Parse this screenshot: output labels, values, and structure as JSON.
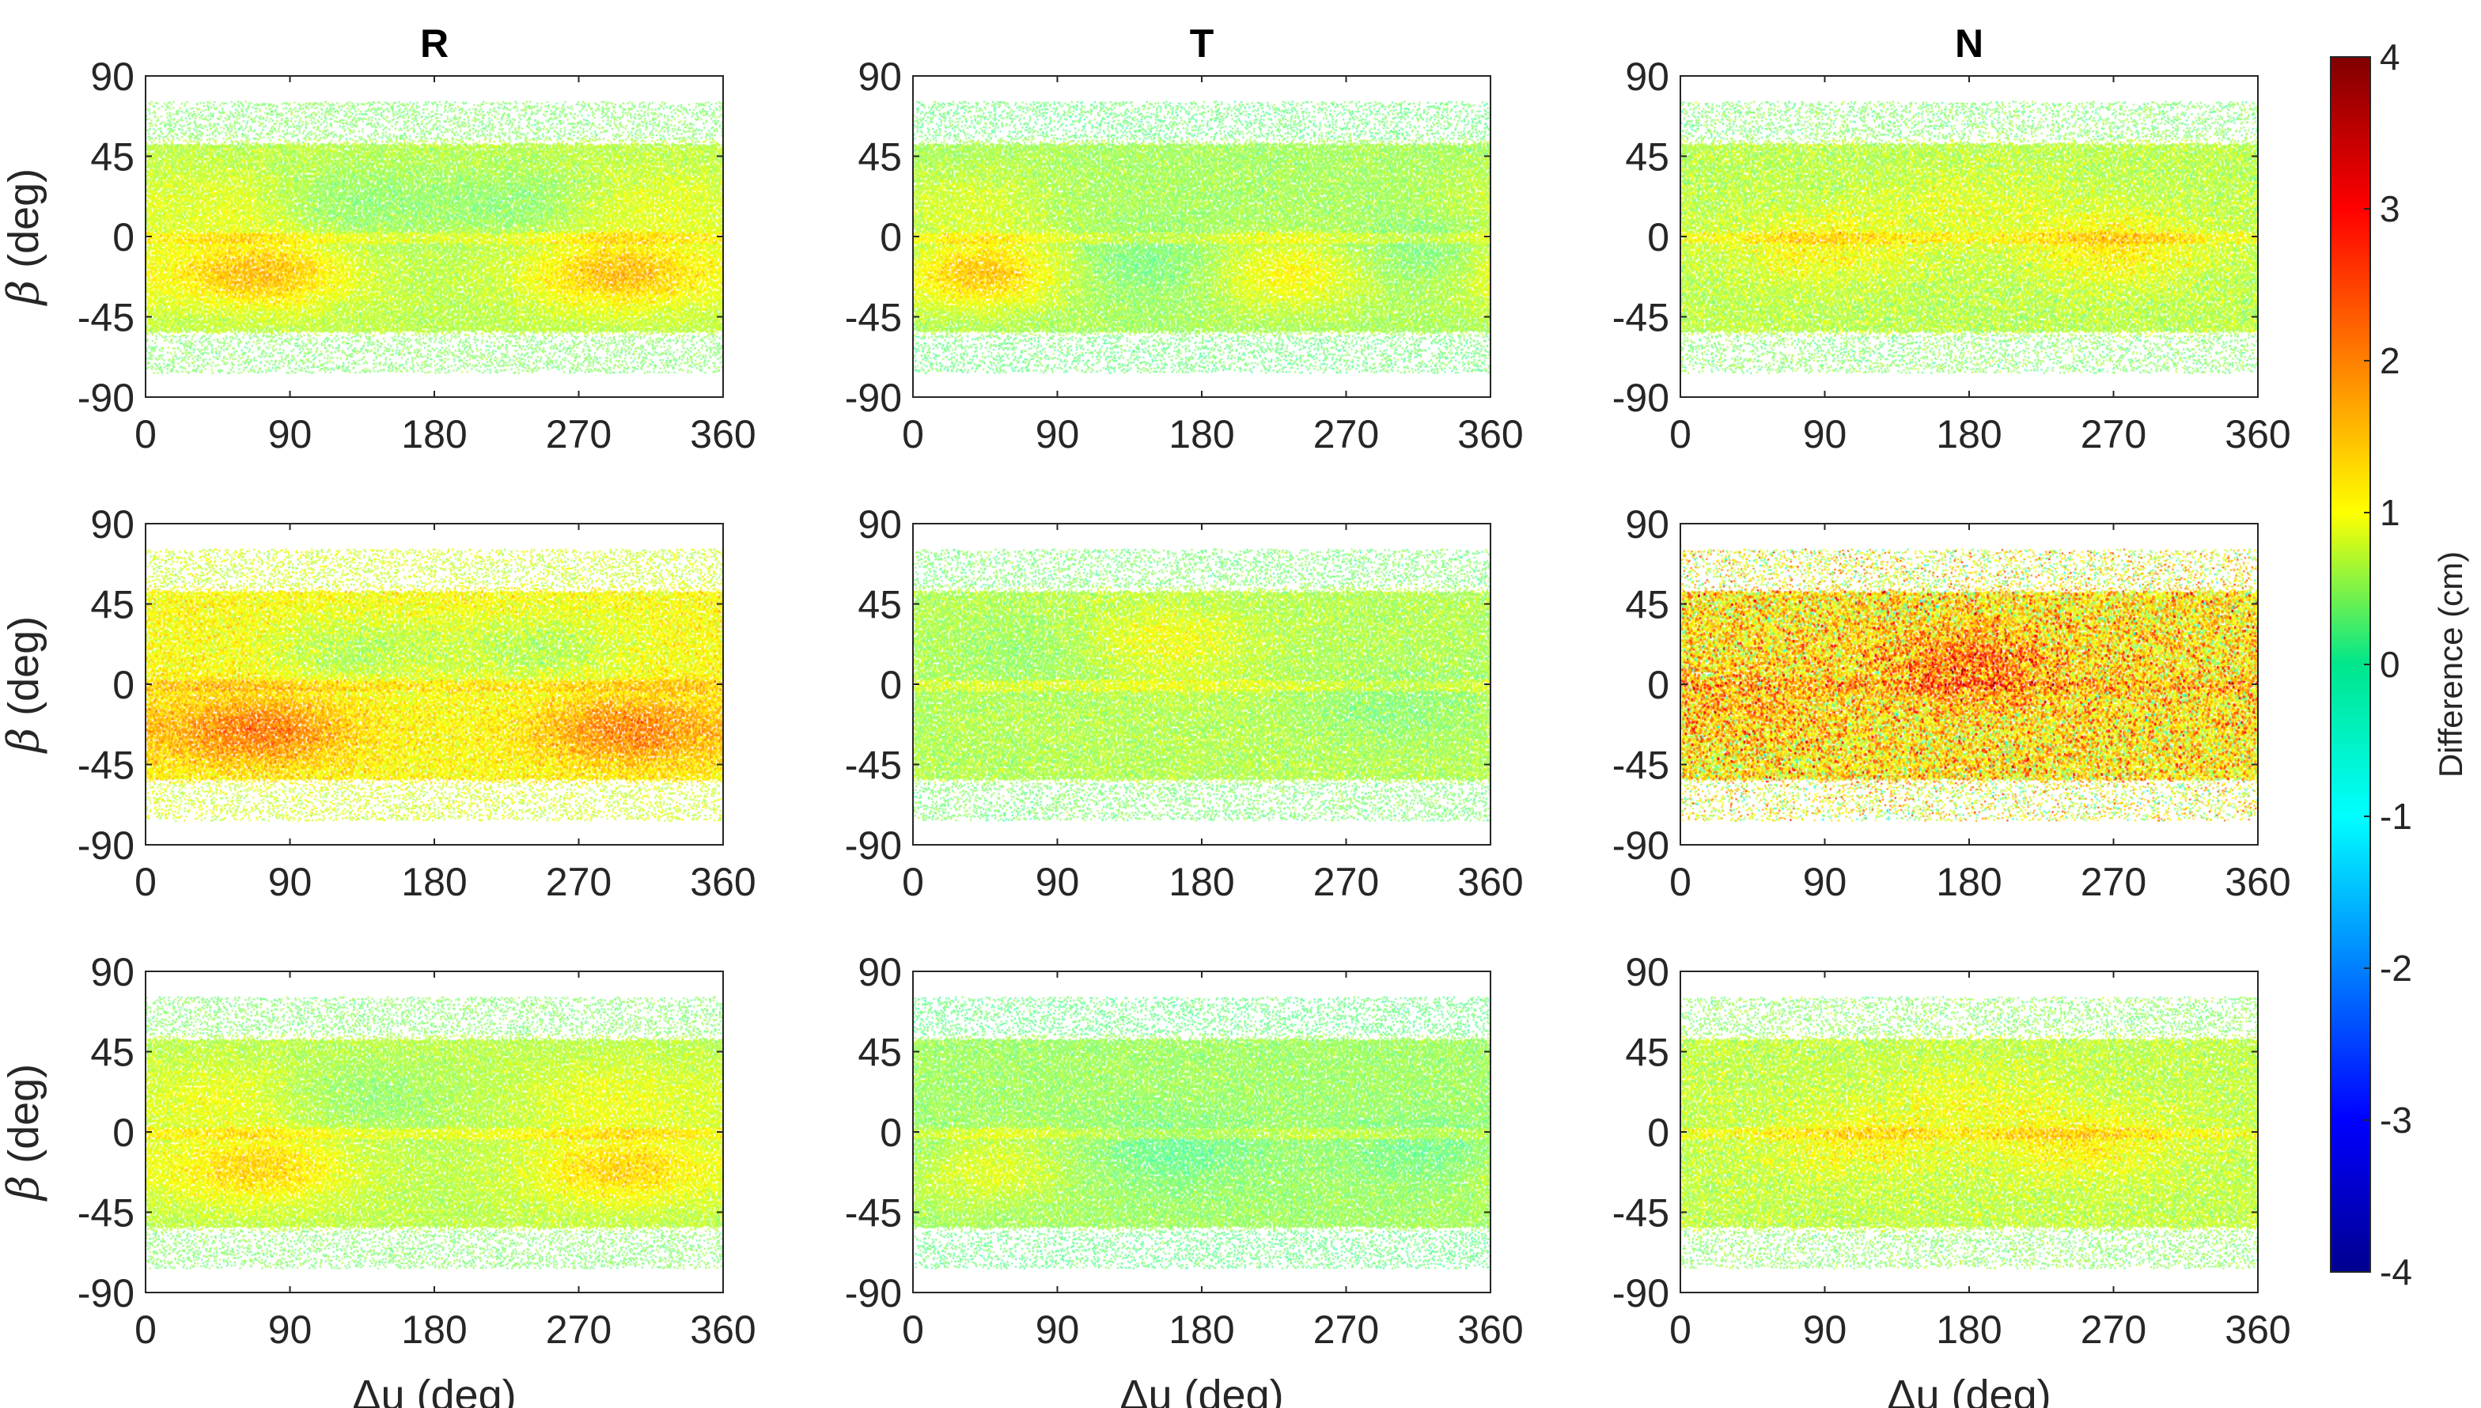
{
  "chart_data": {
    "type": "heatmap",
    "layout": "3x3 grid of scatter-density panels",
    "columns": [
      "R",
      "T",
      "N"
    ],
    "x": {
      "label_prefix": "Δ",
      "label_rest": "u (deg)",
      "range": [
        0,
        360
      ],
      "ticks": [
        0,
        90,
        180,
        270,
        360
      ]
    },
    "y": {
      "label_greek": "β",
      "label_rest": " (deg)",
      "range": [
        -90,
        90
      ],
      "ticks": [
        90,
        45,
        0,
        -45,
        -90
      ]
    },
    "data_extent_beta": [
      -76,
      76
    ],
    "colorbar": {
      "label": "Difference (cm)",
      "range": [
        -4,
        4
      ],
      "ticks": [
        4,
        3,
        2,
        1,
        0,
        -1,
        -2,
        -3,
        -4
      ],
      "colormap": "jet"
    },
    "panels": [
      {
        "row": 1,
        "column": "R",
        "base_cm": 0.45,
        "noise_cm": 0.25,
        "features": [
          {
            "du": 70,
            "beta": -20,
            "amp": 1.1
          },
          {
            "du": 295,
            "beta": -20,
            "amp": 1.1
          },
          {
            "du": 60,
            "beta": 20,
            "amp": 0.4
          },
          {
            "du": 300,
            "beta": 20,
            "amp": 0.4
          },
          {
            "du": 120,
            "beta": 20,
            "amp": -0.4
          },
          {
            "du": 240,
            "beta": 20,
            "amp": -0.4
          }
        ]
      },
      {
        "row": 1,
        "column": "T",
        "base_cm": 0.3,
        "noise_cm": 0.25,
        "features": [
          {
            "du": 40,
            "beta": -20,
            "amp": 1.2
          },
          {
            "du": 235,
            "beta": -20,
            "amp": 0.8
          },
          {
            "du": 150,
            "beta": -15,
            "amp": -0.4
          },
          {
            "du": 320,
            "beta": -10,
            "amp": -0.4
          },
          {
            "du": 30,
            "beta": 20,
            "amp": 0.4
          }
        ]
      },
      {
        "row": 1,
        "column": "N",
        "base_cm": 0.45,
        "noise_cm": 0.35,
        "features": [
          {
            "du": 90,
            "beta": -5,
            "amp": 0.6
          },
          {
            "du": 270,
            "beta": -5,
            "amp": 0.7
          },
          {
            "du": 180,
            "beta": 20,
            "amp": 0.3
          }
        ]
      },
      {
        "row": 2,
        "column": "R",
        "base_cm": 1.0,
        "noise_cm": 0.35,
        "features": [
          {
            "du": 70,
            "beta": -25,
            "amp": 1.1
          },
          {
            "du": 300,
            "beta": -25,
            "amp": 1.0
          },
          {
            "du": 130,
            "beta": 20,
            "amp": -0.6
          },
          {
            "du": 245,
            "beta": 20,
            "amp": -0.6
          }
        ]
      },
      {
        "row": 2,
        "column": "T",
        "base_cm": 0.4,
        "noise_cm": 0.3,
        "features": [
          {
            "du": 150,
            "beta": 25,
            "amp": 0.6
          },
          {
            "du": 90,
            "beta": 20,
            "amp": -0.3
          },
          {
            "du": 300,
            "beta": -10,
            "amp": -0.3
          }
        ]
      },
      {
        "row": 2,
        "column": "N",
        "base_cm": 1.2,
        "noise_cm": 1.1,
        "features": [
          {
            "du": 180,
            "beta": 10,
            "amp": 1.0
          },
          {
            "du": 40,
            "beta": -10,
            "amp": 0.4
          }
        ]
      },
      {
        "row": 3,
        "column": "R",
        "base_cm": 0.45,
        "noise_cm": 0.25,
        "features": [
          {
            "du": 70,
            "beta": -20,
            "amp": 0.9
          },
          {
            "du": 295,
            "beta": -20,
            "amp": 0.9
          },
          {
            "du": 50,
            "beta": 20,
            "amp": 0.4
          },
          {
            "du": 290,
            "beta": 20,
            "amp": 0.4
          },
          {
            "du": 130,
            "beta": 20,
            "amp": -0.3
          }
        ]
      },
      {
        "row": 3,
        "column": "T",
        "base_cm": 0.25,
        "noise_cm": 0.25,
        "features": [
          {
            "du": 40,
            "beta": -20,
            "amp": 0.6
          },
          {
            "du": 160,
            "beta": -10,
            "amp": -0.4
          },
          {
            "du": 330,
            "beta": -10,
            "amp": -0.4
          }
        ]
      },
      {
        "row": 3,
        "column": "N",
        "base_cm": 0.5,
        "noise_cm": 0.35,
        "features": [
          {
            "du": 110,
            "beta": -5,
            "amp": 0.5
          },
          {
            "du": 250,
            "beta": -5,
            "amp": 0.6
          },
          {
            "du": 180,
            "beta": 20,
            "amp": 0.3
          }
        ]
      }
    ]
  }
}
